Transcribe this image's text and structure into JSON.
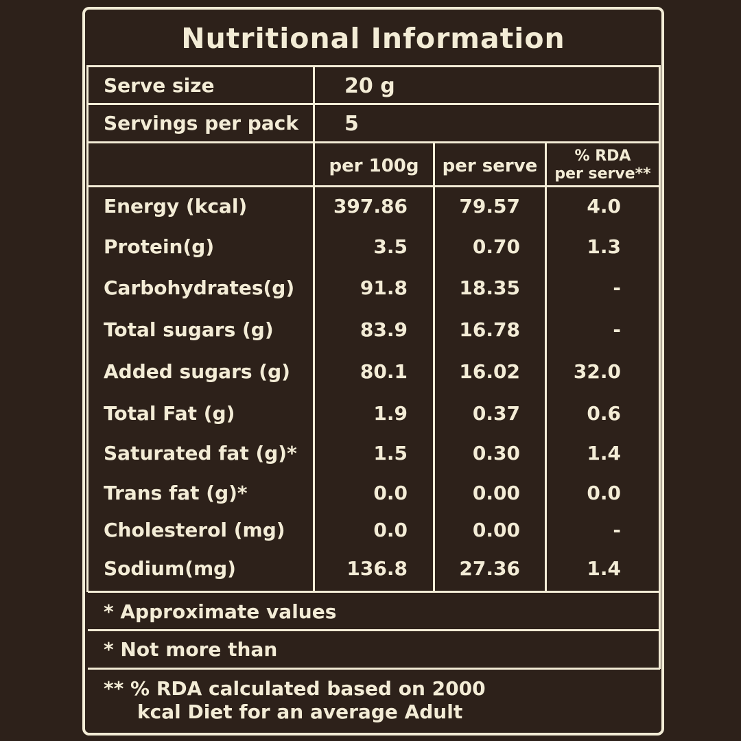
{
  "title": "Nutritional Information",
  "serve_size": {
    "label": "Serve size",
    "value": "20 g"
  },
  "servings_per_pack": {
    "label": "Servings per pack",
    "value": "5"
  },
  "columns": {
    "per100g": "per 100g",
    "per_serve": "per serve",
    "rda_line1": "% RDA",
    "rda_line2": "per serve**"
  },
  "rows": [
    {
      "label": "Energy (kcal)",
      "per100g": "397.86",
      "per_serve": "79.57",
      "rda": "4.0"
    },
    {
      "label": "Protein(g)",
      "per100g": "3.5",
      "per_serve": "0.70",
      "rda": "1.3"
    },
    {
      "label": "Carbohydrates(g)",
      "per100g": "91.8",
      "per_serve": "18.35",
      "rda": "-"
    },
    {
      "label": "Total sugars (g)",
      "per100g": "83.9",
      "per_serve": "16.78",
      "rda": "-"
    },
    {
      "label": "Added sugars (g)",
      "per100g": "80.1",
      "per_serve": "16.02",
      "rda": "32.0"
    },
    {
      "label": "Total Fat (g)",
      "per100g": "1.9",
      "per_serve": "0.37",
      "rda": "0.6"
    },
    {
      "label": "Saturated fat (g)*",
      "per100g": "1.5",
      "per_serve": "0.30",
      "rda": "1.4"
    },
    {
      "label": "Trans fat (g)*",
      "per100g": "0.0",
      "per_serve": "0.00",
      "rda": "0.0"
    },
    {
      "label": "Cholesterol (mg)",
      "per100g": "0.0",
      "per_serve": "0.00",
      "rda": "-"
    },
    {
      "label": "Sodium(mg)",
      "per100g": "136.8",
      "per_serve": "27.36",
      "rda": "1.4"
    }
  ],
  "footnotes": {
    "approx": "* Approximate values",
    "not_more": "* Not more than",
    "rda_line1": "** % RDA calculated based on 2000",
    "rda_line2": "kcal Diet for an average Adult"
  }
}
